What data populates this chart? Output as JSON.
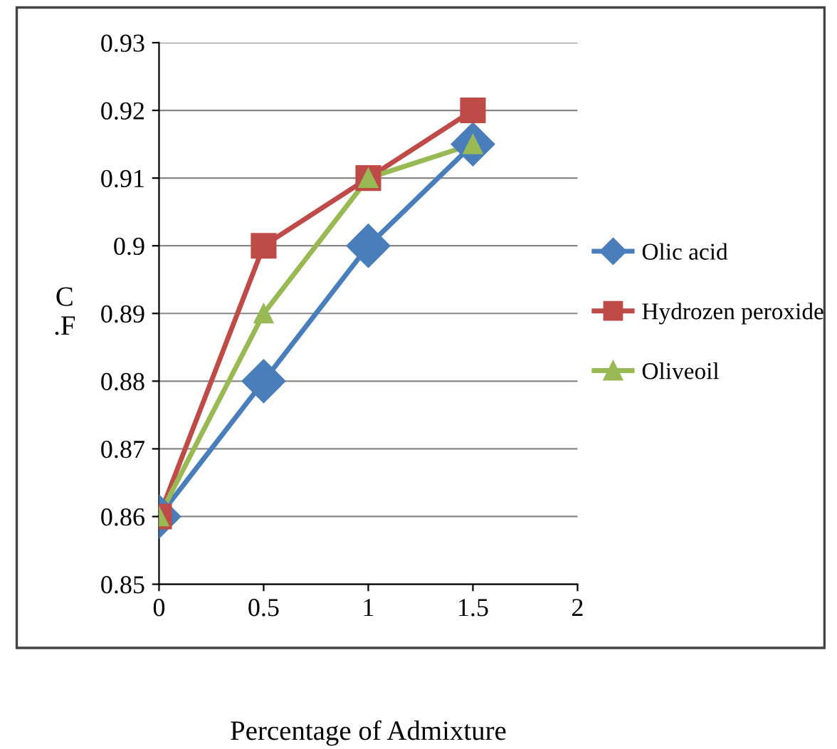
{
  "chart_data": {
    "type": "line",
    "xlabel": "Percentage of Admixture",
    "ylabel": "C\n.F",
    "x": [
      0,
      0.5,
      1,
      1.5
    ],
    "series": [
      {
        "name": "Olic acid",
        "color": "#4a7ebb",
        "marker": "diamond",
        "values": [
          0.86,
          0.88,
          0.9,
          0.915
        ]
      },
      {
        "name": "Hydrozen peroxide",
        "color": "#be4b48",
        "marker": "square",
        "values": [
          0.86,
          0.9,
          0.91,
          0.92
        ]
      },
      {
        "name": "Oliveoil",
        "color": "#98b954",
        "marker": "triangle",
        "values": [
          0.86,
          0.89,
          0.91,
          0.915
        ]
      }
    ],
    "xlim": [
      0,
      2
    ],
    "xticks": [
      0,
      0.5,
      1,
      1.5,
      2
    ],
    "ylim": [
      0.85,
      0.93
    ],
    "yticks": [
      0.85,
      0.86,
      0.87,
      0.88,
      0.89,
      0.9,
      0.91,
      0.92,
      0.93
    ],
    "grid": "y",
    "legend": "right",
    "line_style": "solid"
  }
}
